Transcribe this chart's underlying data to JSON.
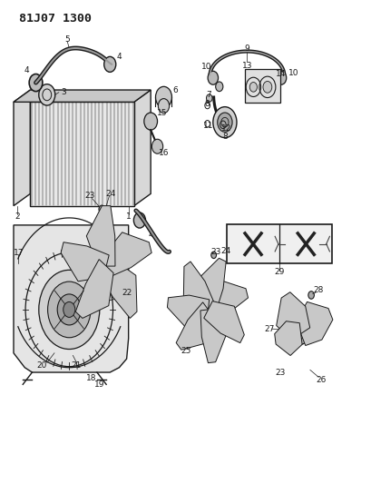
{
  "title": "81J07 1300",
  "bg_color": "#ffffff",
  "line_color": "#1a1a1a",
  "text_color": "#1a1a1a",
  "fig_width": 4.1,
  "fig_height": 5.33,
  "dpi": 100
}
